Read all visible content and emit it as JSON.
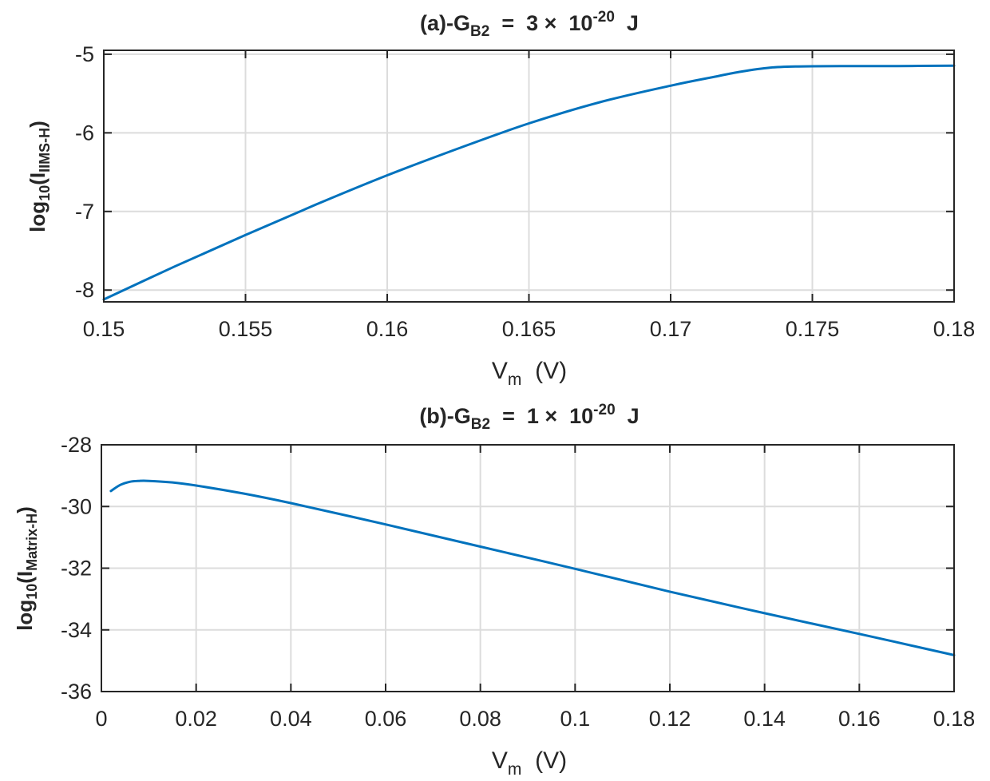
{
  "chart_data": [
    {
      "type": "line",
      "title": {
        "prefix": "(a)-G",
        "sub": "B2",
        "middle": "  =  3 ×  10",
        "sup": "-20",
        "suffix": "  J"
      },
      "xlabel": {
        "main": "V",
        "sub": "m",
        "rest": "  (V)"
      },
      "ylabel": {
        "main": "log",
        "sub1": "10",
        "mid": "(I",
        "sub2": "IIMS-H",
        "end": ")"
      },
      "xlim": [
        0.15,
        0.18
      ],
      "ylim": [
        -8.15,
        -4.95
      ],
      "xticks": [
        0.15,
        0.155,
        0.16,
        0.165,
        0.17,
        0.175,
        0.18
      ],
      "xtick_labels": [
        "0.15",
        "0.155",
        "0.16",
        "0.165",
        "0.17",
        "0.175",
        "0.18"
      ],
      "yticks": [
        -8,
        -7,
        -6,
        -5
      ],
      "ytick_labels": [
        "-8",
        "-7",
        "-6",
        "-5"
      ],
      "grid": true,
      "color": "#0072BD",
      "series": [
        {
          "x": [
            0.15,
            0.1525,
            0.155,
            0.1575,
            0.16,
            0.1625,
            0.165,
            0.1675,
            0.17,
            0.1715,
            0.1725,
            0.1735,
            0.1745,
            0.176,
            0.178,
            0.18
          ],
          "y": [
            -8.12,
            -7.7,
            -7.3,
            -6.91,
            -6.54,
            -6.2,
            -5.88,
            -5.61,
            -5.4,
            -5.29,
            -5.22,
            -5.17,
            -5.155,
            -5.15,
            -5.15,
            -5.145
          ]
        }
      ]
    },
    {
      "type": "line",
      "title": {
        "prefix": "(b)-G",
        "sub": "B2",
        "middle": "  =  1 ×  10",
        "sup": "-20",
        "suffix": "  J"
      },
      "xlabel": {
        "main": "V",
        "sub": "m",
        "rest": "  (V)"
      },
      "ylabel": {
        "main": "log",
        "sub1": "10",
        "mid": "(I",
        "sub2": "Matrix-H",
        "end": ")"
      },
      "xlim": [
        0,
        0.18
      ],
      "ylim": [
        -36,
        -28
      ],
      "xticks": [
        0,
        0.02,
        0.04,
        0.06,
        0.08,
        0.1,
        0.12,
        0.14,
        0.16,
        0.18
      ],
      "xtick_labels": [
        "0",
        "0.02",
        "0.04",
        "0.06",
        "0.08",
        "0.1",
        "0.12",
        "0.14",
        "0.16",
        "0.18"
      ],
      "yticks": [
        -36,
        -34,
        -32,
        -30,
        -28
      ],
      "ytick_labels": [
        "-36",
        "-34",
        "-32",
        "-30",
        "-28"
      ],
      "grid": true,
      "color": "#0072BD",
      "series": [
        {
          "x": [
            0.002,
            0.004,
            0.006,
            0.008,
            0.01,
            0.015,
            0.02,
            0.03,
            0.04,
            0.06,
            0.08,
            0.1,
            0.12,
            0.14,
            0.16,
            0.18
          ],
          "y": [
            -29.5,
            -29.3,
            -29.2,
            -29.17,
            -29.17,
            -29.22,
            -29.32,
            -29.58,
            -29.89,
            -30.58,
            -31.3,
            -32.02,
            -32.76,
            -33.46,
            -34.13,
            -34.82
          ]
        }
      ]
    }
  ]
}
